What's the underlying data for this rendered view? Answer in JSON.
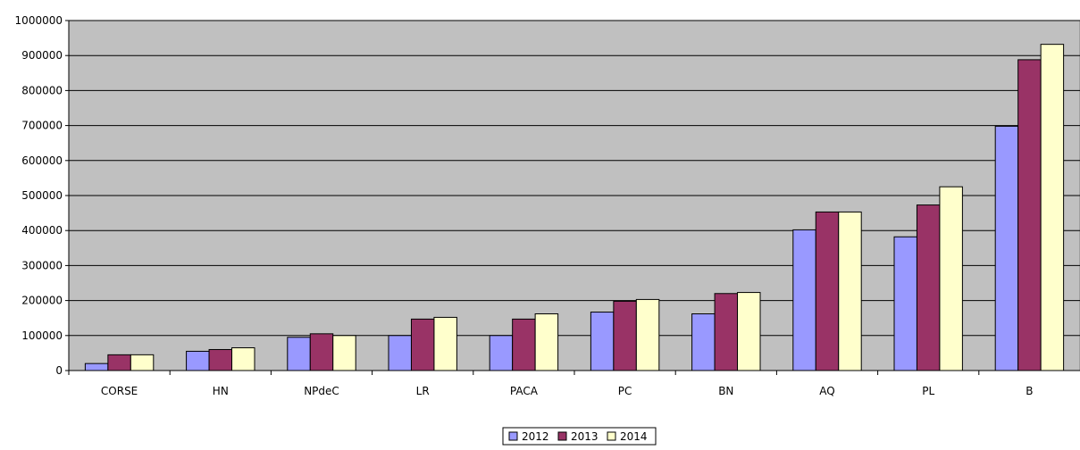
{
  "chart_data": {
    "type": "bar",
    "title": "",
    "xlabel": "",
    "ylabel": "",
    "categories": [
      "CORSE",
      "HN",
      "NPdeC",
      "LR",
      "PACA",
      "PC",
      "BN",
      "AQ",
      "PL",
      "B"
    ],
    "series": [
      {
        "name": "2012",
        "color": "#9999ff",
        "values": [
          20000,
          55000,
          95000,
          100000,
          100000,
          167000,
          162000,
          402000,
          382000,
          698000
        ]
      },
      {
        "name": "2013",
        "color": "#993366",
        "values": [
          45000,
          60000,
          105000,
          147000,
          147000,
          198000,
          220000,
          453000,
          473000,
          888000
        ]
      },
      {
        "name": "2014",
        "color": "#ffffcc",
        "values": [
          45000,
          65000,
          100000,
          152000,
          162000,
          203000,
          223000,
          453000,
          525000,
          932000
        ]
      }
    ],
    "ylim": [
      0,
      1000000
    ],
    "yticks": [
      "0",
      "100000",
      "200000",
      "300000",
      "400000",
      "500000",
      "600000",
      "700000",
      "800000",
      "900000",
      "1000000"
    ],
    "grid": true,
    "plot_background": "#c0c0c0",
    "legend_position": "bottom-center"
  }
}
